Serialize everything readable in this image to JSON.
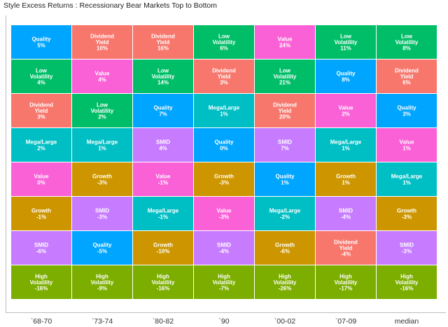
{
  "title": "Style Excess Returns : Recessionary Bear Markets Top to Bottom",
  "colors": {
    "Quality": "#00a5ff",
    "Dividend Yield": "#f7776d",
    "Low Volatility": "#00be67",
    "Value": "#fb61d7",
    "Mega/Large": "#00bfc4",
    "SMID": "#c77cff",
    "Growth": "#cd9600",
    "High Volatility": "#7cae00"
  },
  "chart_data": {
    "type": "table",
    "title": "Style Excess Returns : Recessionary Bear Markets Top to Bottom",
    "columns": [
      "`68-70",
      "`73-74",
      "`80-82",
      "`90",
      "`00-02",
      "`07-09",
      "median"
    ],
    "rank_rows": 8,
    "cells": [
      [
        {
          "lines": [
            "Quality"
          ],
          "value": "5%",
          "style": "Quality"
        },
        {
          "lines": [
            "Low",
            "Volatility"
          ],
          "value": "4%",
          "style": "Low Volatility"
        },
        {
          "lines": [
            "Dividend",
            "Yield"
          ],
          "value": "3%",
          "style": "Dividend Yield"
        },
        {
          "lines": [
            "Mega/Large"
          ],
          "value": "2%",
          "style": "Mega/Large"
        },
        {
          "lines": [
            "Value"
          ],
          "value": "0%",
          "style": "Value"
        },
        {
          "lines": [
            "Growth"
          ],
          "value": "-1%",
          "style": "Growth"
        },
        {
          "lines": [
            "SMID"
          ],
          "value": "-6%",
          "style": "SMID"
        },
        {
          "lines": [
            "High",
            "Volatility"
          ],
          "value": "-16%",
          "style": "High Volatility"
        }
      ],
      [
        {
          "lines": [
            "Dividend",
            "Yield"
          ],
          "value": "10%",
          "style": "Dividend Yield"
        },
        {
          "lines": [
            "Value"
          ],
          "value": "4%",
          "style": "Value"
        },
        {
          "lines": [
            "Low",
            "Volatility"
          ],
          "value": "2%",
          "style": "Low Volatility"
        },
        {
          "lines": [
            "Mega/Large"
          ],
          "value": "1%",
          "style": "Mega/Large"
        },
        {
          "lines": [
            "Growth"
          ],
          "value": "-3%",
          "style": "Growth"
        },
        {
          "lines": [
            "SMID"
          ],
          "value": "-3%",
          "style": "SMID"
        },
        {
          "lines": [
            "Quality"
          ],
          "value": "-5%",
          "style": "Quality"
        },
        {
          "lines": [
            "High",
            "Volatility"
          ],
          "value": "-9%",
          "style": "High Volatility"
        }
      ],
      [
        {
          "lines": [
            "Dividend",
            "Yield"
          ],
          "value": "16%",
          "style": "Dividend Yield"
        },
        {
          "lines": [
            "Low",
            "Volatility"
          ],
          "value": "14%",
          "style": "Low Volatility"
        },
        {
          "lines": [
            "Quality"
          ],
          "value": "7%",
          "style": "Quality"
        },
        {
          "lines": [
            "SMID"
          ],
          "value": "4%",
          "style": "SMID"
        },
        {
          "lines": [
            "Value"
          ],
          "value": "-1%",
          "style": "Value"
        },
        {
          "lines": [
            "Mega/Large"
          ],
          "value": "-1%",
          "style": "Mega/Large"
        },
        {
          "lines": [
            "Growth"
          ],
          "value": "-10%",
          "style": "Growth"
        },
        {
          "lines": [
            "High",
            "Volatility"
          ],
          "value": "-16%",
          "style": "High Volatility"
        }
      ],
      [
        {
          "lines": [
            "Low",
            "Volatility"
          ],
          "value": "6%",
          "style": "Low Volatility"
        },
        {
          "lines": [
            "Dividend",
            "Yield"
          ],
          "value": "3%",
          "style": "Dividend Yield"
        },
        {
          "lines": [
            "Mega/Large"
          ],
          "value": "1%",
          "style": "Mega/Large"
        },
        {
          "lines": [
            "Quality"
          ],
          "value": "0%",
          "style": "Quality"
        },
        {
          "lines": [
            "Growth"
          ],
          "value": "-3%",
          "style": "Growth"
        },
        {
          "lines": [
            "Value"
          ],
          "value": "-3%",
          "style": "Value"
        },
        {
          "lines": [
            "SMID"
          ],
          "value": "-4%",
          "style": "SMID"
        },
        {
          "lines": [
            "High",
            "Volatility"
          ],
          "value": "-7%",
          "style": "High Volatility"
        }
      ],
      [
        {
          "lines": [
            "Value"
          ],
          "value": "24%",
          "style": "Value"
        },
        {
          "lines": [
            "Low",
            "Volatility"
          ],
          "value": "21%",
          "style": "Low Volatility"
        },
        {
          "lines": [
            "Dividend",
            "Yield"
          ],
          "value": "20%",
          "style": "Dividend Yield"
        },
        {
          "lines": [
            "SMID"
          ],
          "value": "7%",
          "style": "SMID"
        },
        {
          "lines": [
            "Quality"
          ],
          "value": "1%",
          "style": "Quality"
        },
        {
          "lines": [
            "Mega/Large"
          ],
          "value": "-2%",
          "style": "Mega/Large"
        },
        {
          "lines": [
            "Growth"
          ],
          "value": "-6%",
          "style": "Growth"
        },
        {
          "lines": [
            "High",
            "Volatility"
          ],
          "value": "-26%",
          "style": "High Volatility"
        }
      ],
      [
        {
          "lines": [
            "Low",
            "Volatility"
          ],
          "value": "11%",
          "style": "Low Volatility"
        },
        {
          "lines": [
            "Quality"
          ],
          "value": "8%",
          "style": "Quality"
        },
        {
          "lines": [
            "Value"
          ],
          "value": "2%",
          "style": "Value"
        },
        {
          "lines": [
            "Mega/Large"
          ],
          "value": "1%",
          "style": "Mega/Large"
        },
        {
          "lines": [
            "Growth"
          ],
          "value": "1%",
          "style": "Growth"
        },
        {
          "lines": [
            "SMID"
          ],
          "value": "-4%",
          "style": "SMID"
        },
        {
          "lines": [
            "Dividend",
            "Yield"
          ],
          "value": "-4%",
          "style": "Dividend Yield"
        },
        {
          "lines": [
            "High",
            "Volatility"
          ],
          "value": "-17%",
          "style": "High Volatility"
        }
      ],
      [
        {
          "lines": [
            "Low",
            "Volatility"
          ],
          "value": "8%",
          "style": "Low Volatility"
        },
        {
          "lines": [
            "Dividend",
            "Yield"
          ],
          "value": "6%",
          "style": "Dividend Yield"
        },
        {
          "lines": [
            "Quality"
          ],
          "value": "3%",
          "style": "Quality"
        },
        {
          "lines": [
            "Value"
          ],
          "value": "1%",
          "style": "Value"
        },
        {
          "lines": [
            "Mega/Large"
          ],
          "value": "1%",
          "style": "Mega/Large"
        },
        {
          "lines": [
            "Growth"
          ],
          "value": "-3%",
          "style": "Growth"
        },
        {
          "lines": [
            "SMID"
          ],
          "value": "-3%",
          "style": "SMID"
        },
        {
          "lines": [
            "High",
            "Volatility"
          ],
          "value": "-16%",
          "style": "High Volatility"
        }
      ]
    ],
    "xlabel": "",
    "ylabel": "",
    "grid": false,
    "legend": "none"
  }
}
